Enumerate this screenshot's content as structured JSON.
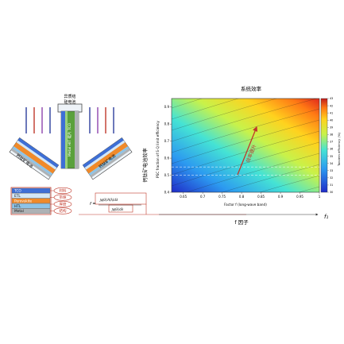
{
  "left": {
    "top_label_line1": "异质结",
    "top_label_line2": "硅电池",
    "left_wing_label": "钙钛矿电池",
    "right_wing_label": "钙钛矿电池",
    "center_strip_text": "Metal HIT 硅片 TCO"
  },
  "stack": {
    "layers": [
      {
        "name": "TCO",
        "color": "#3e6fd6"
      },
      {
        "name": "ETL",
        "color": "#d3e7f7"
      },
      {
        "name": "Perovskite",
        "color": "#f08a2a"
      },
      {
        "name": "HTL",
        "color": "#8ec3e6"
      },
      {
        "name": "Metal",
        "color": "#aeb2b5"
      }
    ],
    "tags": [
      "材料",
      "带隙",
      "厚度",
      "结构"
    ],
    "formula_top": "∫φ(λ)A(λ)dλ",
    "formula_bottom": "∫φ(λ)dλ",
    "f_symbol": "f ="
  },
  "middle_axis_label": "钙钛矿电池效率",
  "chart_data": {
    "type": "heatmap",
    "title": "系统效率",
    "xlabel": "Factor f (long-wave band)",
    "ylabel": "PSC fraction of S-Q limit efficiency",
    "x_ticks": [
      "0.65",
      "0.7",
      "0.75",
      "0.8",
      "0.85",
      "0.9",
      "0.95",
      "1"
    ],
    "y_ticks": [
      "0.4",
      "0.5",
      "0.6",
      "0.7",
      "0.8",
      "0.9"
    ],
    "colorbar_label": "Tandem efficiency (%)",
    "colorbar_ticks": [
      "30",
      "31",
      "32",
      "33",
      "34",
      "35",
      "36",
      "37",
      "38",
      "39",
      "40",
      "41",
      "42",
      "43"
    ],
    "xlim": [
      0.62,
      1.0
    ],
    "ylim": [
      0.4,
      0.95
    ],
    "annotation": "效率提升",
    "below_label": "f 因子",
    "right_label": "f₁",
    "colors": {
      "arrow": "#c0392b"
    }
  }
}
